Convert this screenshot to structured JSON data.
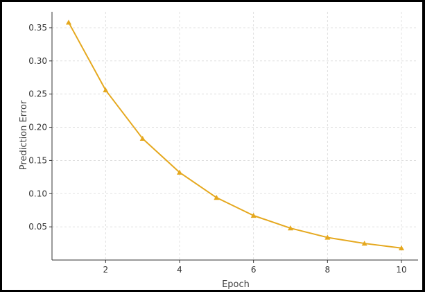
{
  "chart_data": {
    "type": "line",
    "title": "",
    "xlabel": "Epoch",
    "ylabel": "Prediction Error",
    "x": [
      1,
      2,
      3,
      4,
      5,
      6,
      7,
      8,
      9,
      10
    ],
    "series": [
      {
        "values": [
          0.358,
          0.256,
          0.183,
          0.132,
          0.094,
          0.067,
          0.048,
          0.034,
          0.025,
          0.018
        ],
        "color": "#e5a81e",
        "marker": "triangle"
      }
    ],
    "xlim": [
      0.55,
      10.45
    ],
    "ylim": [
      0.0,
      0.374
    ],
    "xticks": [
      2,
      4,
      6,
      8,
      10
    ],
    "yticks": [
      0.05,
      0.1,
      0.15,
      0.2,
      0.25,
      0.3,
      0.35
    ],
    "xtick_labels": [
      "2",
      "4",
      "6",
      "8",
      "10"
    ],
    "ytick_labels": [
      "0.05",
      "0.10",
      "0.15",
      "0.20",
      "0.25",
      "0.30",
      "0.35"
    ],
    "grid": true,
    "grid_style": "dashed",
    "legend": false
  }
}
